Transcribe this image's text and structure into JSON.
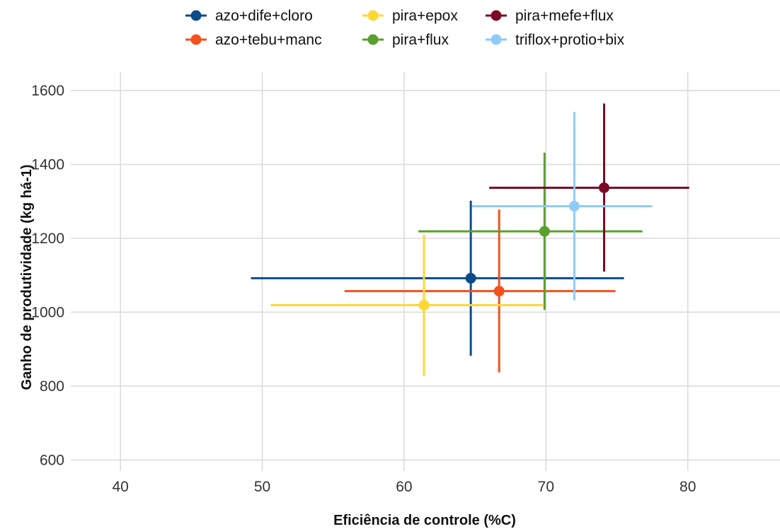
{
  "chart_data": {
    "type": "scatter",
    "title": "",
    "xlabel": "Eficiência de controle (%C)",
    "ylabel": "Ganho de produtividade (kg há-1)",
    "xlim": [
      36.5,
      86.5
    ],
    "ylim": [
      570,
      1650
    ],
    "xticks": [
      40,
      50,
      60,
      70,
      80
    ],
    "yticks": [
      600,
      800,
      1000,
      1200,
      1400,
      1600
    ],
    "grid": true,
    "legend_position": "top",
    "series": [
      {
        "name": "azo+dife+cloro",
        "color": "#0b4a8b",
        "x": 64.7,
        "y": 1092,
        "x_err": [
          49.2,
          75.5
        ],
        "y_err": [
          882,
          1302
        ]
      },
      {
        "name": "azo+tebu+manc",
        "color": "#f4511e",
        "x": 66.7,
        "y": 1057,
        "x_err": [
          55.8,
          74.9
        ],
        "y_err": [
          837,
          1278
        ]
      },
      {
        "name": "pira+epox",
        "color": "#fdd835",
        "x": 61.4,
        "y": 1019,
        "x_err": [
          50.6,
          69.8
        ],
        "y_err": [
          827,
          1210
        ]
      },
      {
        "name": "pira+flux",
        "color": "#5aa02c",
        "x": 69.9,
        "y": 1219,
        "x_err": [
          61.0,
          76.8
        ],
        "y_err": [
          1006,
          1432
        ]
      },
      {
        "name": "pira+mefe+flux",
        "color": "#7b0a24",
        "x": 74.1,
        "y": 1337,
        "x_err": [
          66.0,
          80.1
        ],
        "y_err": [
          1110,
          1565
        ]
      },
      {
        "name": "triflox+protio+bix",
        "color": "#90caf9",
        "x": 72.0,
        "y": 1287,
        "x_err": [
          64.8,
          77.5
        ],
        "y_err": [
          1032,
          1542
        ]
      }
    ]
  }
}
